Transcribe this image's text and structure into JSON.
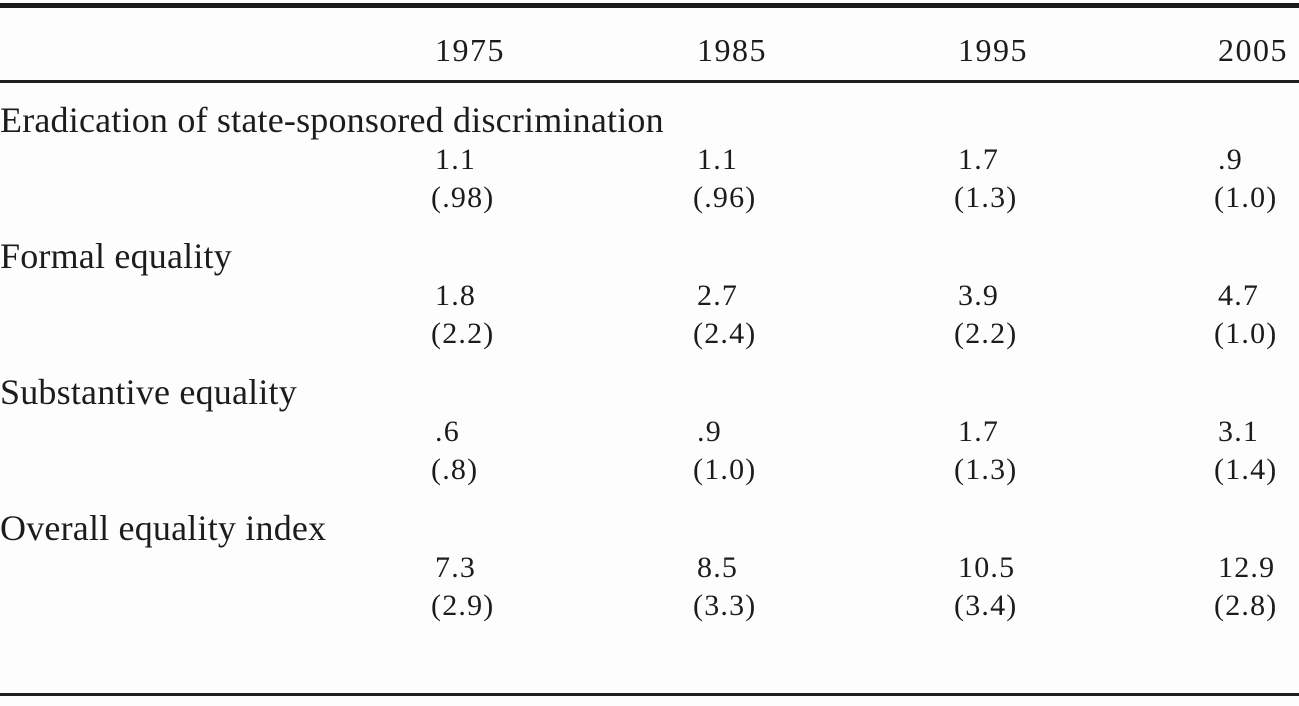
{
  "table": {
    "columns": [
      "1975",
      "1985",
      "1995",
      "2005"
    ],
    "rows": [
      {
        "label": "Eradication of state-sponsored discrimination",
        "values": [
          "1.1",
          "1.1",
          "1.7",
          ".9"
        ],
        "sd": [
          "(.98)",
          "(.96)",
          "(1.3)",
          "(1.0)"
        ]
      },
      {
        "label": "Formal equality",
        "values": [
          "1.8",
          "2.7",
          "3.9",
          "4.7"
        ],
        "sd": [
          "(2.2)",
          "(2.4)",
          "(2.2)",
          "(1.0)"
        ]
      },
      {
        "label": "Substantive equality",
        "values": [
          ".6",
          ".9",
          "1.7",
          "3.1"
        ],
        "sd": [
          "(.8)",
          "(1.0)",
          "(1.3)",
          "(1.4)"
        ]
      },
      {
        "label": "Overall equality index",
        "values": [
          "7.3",
          "8.5",
          "10.5",
          "12.9"
        ],
        "sd": [
          "(2.9)",
          "(3.3)",
          "(3.4)",
          "(2.8)"
        ]
      }
    ]
  },
  "colors": {
    "text": "#1c1c1c",
    "rule": "#1a1a1a",
    "background": "#fdfdfd"
  }
}
